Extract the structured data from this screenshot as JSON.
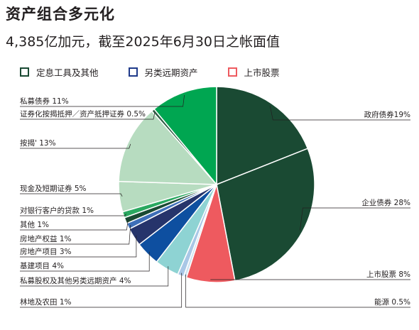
{
  "title": "资产组合多元化",
  "subtitle": "4,385亿加元，截至2025年6月30日之帐面值",
  "legend": [
    {
      "label": "定息工具及其他",
      "color": "#1a4a33"
    },
    {
      "label": "另类远期资产",
      "color": "#1f3a8a"
    },
    {
      "label": "上市股票",
      "color": "#ee5a5f"
    }
  ],
  "chart_data": {
    "type": "pie",
    "slices": [
      {
        "label": "政府债券19%",
        "value": 19,
        "color": "#1a4a33"
      },
      {
        "label": "企业债券 28%",
        "value": 28,
        "color": "#1a4a33"
      },
      {
        "label": "上市股票 8%",
        "value": 8,
        "color": "#ee5a5f"
      },
      {
        "label": "能源 0.5%",
        "value": 0.5,
        "color": "#cde3f1"
      },
      {
        "label": "林地及农田 1%",
        "value": 1,
        "color": "#a9c7e6"
      },
      {
        "label": "私募股权及其他另类远期资产 4%",
        "value": 4,
        "color": "#8ed3d3"
      },
      {
        "label": "基建项目 4%",
        "value": 4,
        "color": "#0e4fa0"
      },
      {
        "label": "房地产项目 3%",
        "value": 3,
        "color": "#26346b"
      },
      {
        "label": "房地产权益 1%",
        "value": 1,
        "color": "#3e6fb8"
      },
      {
        "label": "其他 1%",
        "value": 1,
        "color": "#1a4a33"
      },
      {
        "label": "对银行客户的贷款 1%",
        "value": 1,
        "color": "#2aa860"
      },
      {
        "label": "现金及短期证券 5%",
        "value": 5,
        "color": "#b7dcc0"
      },
      {
        "label": "按揭' 13%",
        "value": 13,
        "color": "#b7dcc0"
      },
      {
        "label": "证券化按揭抵押／资产抵押证券 0.5%",
        "value": 0.5,
        "color": "#2f5e44"
      },
      {
        "label": "私募债券 11%",
        "value": 11,
        "color": "#00a651"
      }
    ]
  }
}
